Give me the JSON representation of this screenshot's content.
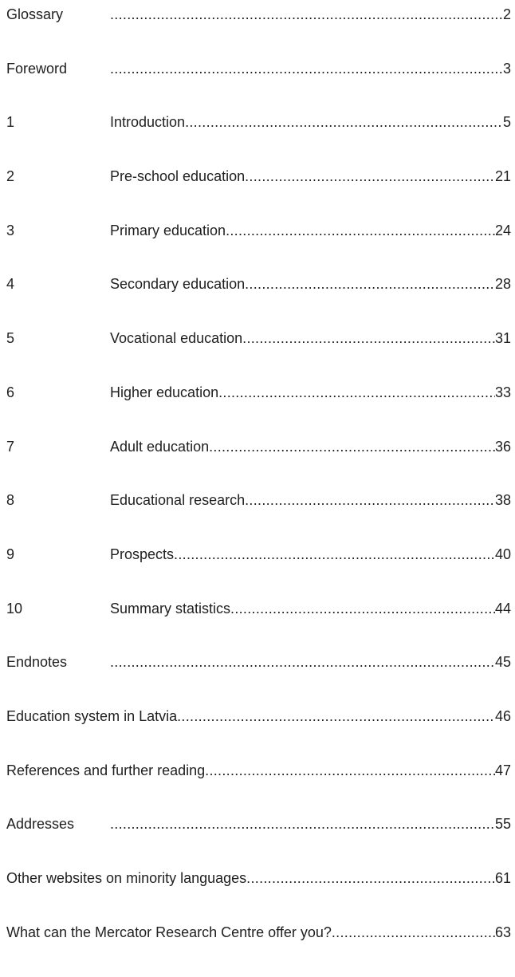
{
  "toc": {
    "entries": [
      {
        "prefix": "Glossary",
        "title": "",
        "page": "2"
      },
      {
        "prefix": "Foreword",
        "title": "",
        "page": "3"
      },
      {
        "num": "1",
        "title": "Introduction",
        "page": "5"
      },
      {
        "num": "2",
        "title": "Pre-school education",
        "page": "21"
      },
      {
        "num": "3",
        "title": "Primary education",
        "page": "24"
      },
      {
        "num": "4",
        "title": "Secondary education",
        "page": "28"
      },
      {
        "num": "5",
        "title": "Vocational education",
        "page": "31"
      },
      {
        "num": "6",
        "title": "Higher education",
        "page": "33"
      },
      {
        "num": "7",
        "title": "Adult education",
        "page": "36"
      },
      {
        "num": "8",
        "title": "Educational research",
        "page": "38"
      },
      {
        "num": "9",
        "title": "Prospects",
        "page": "40"
      },
      {
        "num": "10",
        "title": "Summary statistics",
        "page": "44"
      },
      {
        "prefix": "Endnotes",
        "title": "",
        "page": "45"
      },
      {
        "title": "Education system in Latvia",
        "page": "46"
      },
      {
        "title": "References and further reading",
        "page": "47"
      },
      {
        "prefix": "Addresses",
        "title": "",
        "page": "55"
      },
      {
        "title": "Other websites on minority languages ",
        "page": "61"
      },
      {
        "title": "What can the Mercator Research Centre offer you?",
        "page": "63"
      }
    ]
  }
}
